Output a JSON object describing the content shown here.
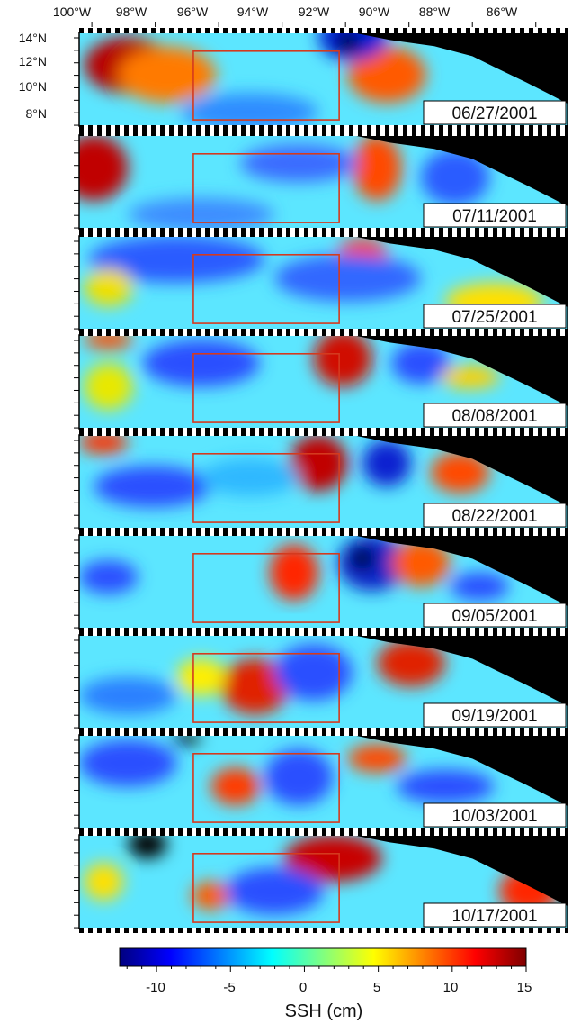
{
  "map": {
    "lon_labels": [
      "100°W",
      "98°W",
      "96°W",
      "94°W",
      "92°W",
      "90°W",
      "88°W",
      "86°W"
    ],
    "lat_labels": [
      "14°N",
      "12°N",
      "10°N",
      "8°N"
    ],
    "region_box": {
      "lon_min": -96.8,
      "lon_max": -92.2,
      "lat_min": 7.3,
      "lat_max": 12.8
    }
  },
  "panels": [
    {
      "date": "06/27/2001"
    },
    {
      "date": "07/11/2001"
    },
    {
      "date": "07/25/2001"
    },
    {
      "date": "08/08/2001"
    },
    {
      "date": "08/22/2001"
    },
    {
      "date": "09/05/2001"
    },
    {
      "date": "09/19/2001"
    },
    {
      "date": "10/03/2001"
    },
    {
      "date": "10/17/2001"
    }
  ],
  "colorbar": {
    "label": "SSH (cm)",
    "tick_labels": [
      "-10",
      "-5",
      "0",
      "5",
      "10",
      "15"
    ],
    "range": [
      -12.5,
      15
    ],
    "colors": [
      "#00007f",
      "#0000ff",
      "#0080ff",
      "#00ffff",
      "#80ff80",
      "#ffff00",
      "#ff8000",
      "#ff0000",
      "#7f0000"
    ]
  },
  "style": {
    "box_color": "#d43a1e",
    "land_color": "#000000"
  }
}
